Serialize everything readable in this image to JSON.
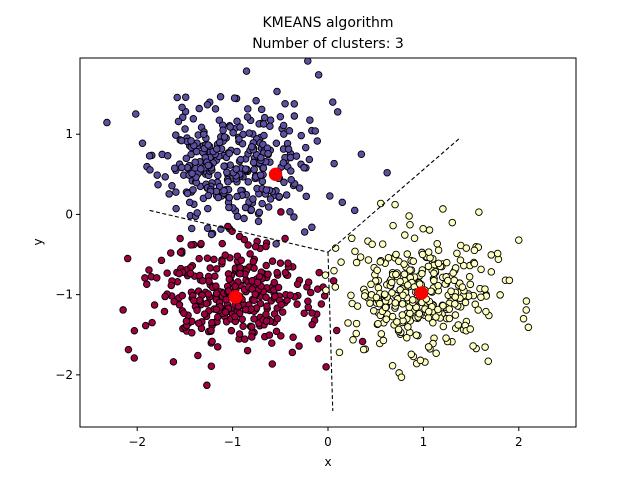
{
  "chart_data": {
    "type": "scatter",
    "title": "KMEANS algorithm",
    "subtitle": "Number of clusters: 3",
    "xlabel": "x",
    "ylabel": "y",
    "xlim": [
      -2.6,
      2.6
    ],
    "ylim": [
      -2.65,
      1.95
    ],
    "xticks": [
      -2,
      -1,
      0,
      1,
      2
    ],
    "xtick_labels": [
      "−2",
      "−1",
      "0",
      "1",
      "2"
    ],
    "yticks": [
      -2,
      -1,
      0,
      1
    ],
    "ytick_labels": [
      "−2",
      "−1",
      "0",
      "1"
    ],
    "grid": false,
    "legend": "none",
    "series": [
      {
        "color": "#5e4fa2",
        "center": [
          -1.0,
          0.6
        ],
        "spread": [
          0.38,
          0.38
        ],
        "count": 330,
        "seed": 11,
        "centroid": [
          -0.55,
          0.5
        ],
        "points": [
          [
            -1.35,
            1.32
          ],
          [
            -0.98,
            1.45
          ],
          [
            -0.45,
            1.38
          ],
          [
            0.05,
            1.4
          ],
          [
            -1.87,
            0.73
          ],
          [
            0.62,
            0.52
          ],
          [
            0.28,
            0.05
          ],
          [
            -1.45,
            0.15
          ],
          [
            -0.88,
            -0.05
          ],
          [
            0.15,
            0.15
          ],
          [
            -1.1,
            1.05
          ],
          [
            0.35,
            0.75
          ]
        ]
      },
      {
        "color": "#9e0142",
        "center": [
          -1.0,
          -1.05
        ],
        "spread": [
          0.4,
          0.33
        ],
        "count": 330,
        "seed": 23,
        "centroid": [
          -0.97,
          -1.03
        ],
        "points": [
          [
            -2.1,
            -0.55
          ],
          [
            -2.03,
            -1.45
          ],
          [
            -1.27,
            -2.13
          ],
          [
            -0.02,
            -1.9
          ],
          [
            -1.55,
            -0.3
          ],
          [
            -0.45,
            -0.3
          ],
          [
            -1.9,
            -0.87
          ],
          [
            -0.1,
            -1.55
          ],
          [
            -0.65,
            -0.4
          ],
          [
            -1.05,
            -0.15
          ]
        ]
      },
      {
        "color": "#ffffbf",
        "center": [
          1.0,
          -0.98
        ],
        "spread": [
          0.38,
          0.36
        ],
        "count": 330,
        "seed": 37,
        "centroid": [
          0.98,
          -0.98
        ],
        "points": [
          [
            0.85,
            -0.02
          ],
          [
            2.0,
            -0.32
          ],
          [
            2.08,
            -1.08
          ],
          [
            1.68,
            -1.83
          ],
          [
            0.77,
            -2.03
          ],
          [
            0.12,
            -1.72
          ],
          [
            0.08,
            -0.42
          ],
          [
            2.05,
            -1.3
          ],
          [
            0.3,
            -0.6
          ],
          [
            1.45,
            -0.42
          ]
        ]
      }
    ],
    "boundaries": [
      [
        [
          -1.87,
          0.05
        ],
        [
          0.0,
          -0.47
        ]
      ],
      [
        [
          0.0,
          -0.47
        ],
        [
          1.38,
          0.95
        ]
      ],
      [
        [
          0.0,
          -0.47
        ],
        [
          0.05,
          -2.45
        ]
      ]
    ],
    "colors": {
      "centroid": "#ff0000",
      "marker_edge": "#000000",
      "boundary": "#000000"
    }
  }
}
